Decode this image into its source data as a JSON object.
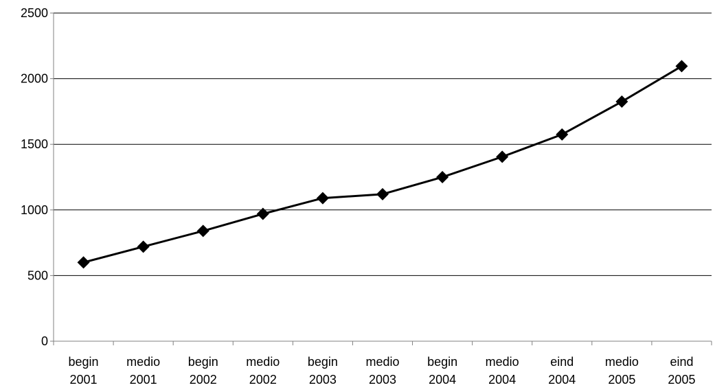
{
  "chart_data": {
    "type": "line",
    "title": "",
    "xlabel": "",
    "ylabel": "",
    "categories": [
      [
        "begin",
        "2001"
      ],
      [
        "medio",
        "2001"
      ],
      [
        "begin",
        "2002"
      ],
      [
        "medio",
        "2002"
      ],
      [
        "begin",
        "2003"
      ],
      [
        "medio",
        "2003"
      ],
      [
        "begin",
        "2004"
      ],
      [
        "medio",
        "2004"
      ],
      [
        "eind",
        "2004"
      ],
      [
        "medio",
        "2005"
      ],
      [
        "eind",
        "2005"
      ]
    ],
    "series": [
      {
        "values": [
          600,
          720,
          840,
          970,
          1090,
          1120,
          1250,
          1405,
          1575,
          1825,
          2095
        ],
        "color": "#000000",
        "marker": "diamond"
      }
    ],
    "ylim": [
      0,
      2500
    ],
    "yticks": [
      0,
      500,
      1000,
      1500,
      2000,
      2500
    ],
    "grid": true,
    "legend": "none"
  }
}
